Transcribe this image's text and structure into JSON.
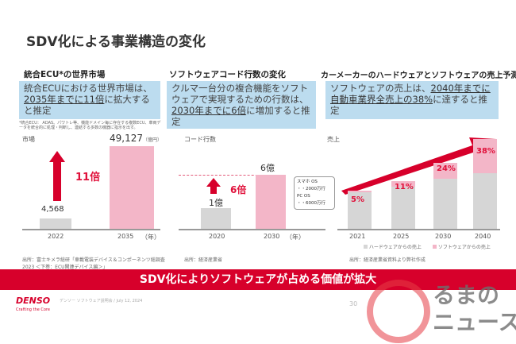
{
  "title": "SDV化による事業構造の変化",
  "panel1": {
    "heading": "統合ECU*の世界市場",
    "text_pre": "統合ECUにおける世界市場は、",
    "text_u": "2035年までに11倍",
    "text_post": "に拡大すると推定",
    "footnote": "*統合ECU： ADAS、パワトレ等、機能ドメイン毎に存在する複数ECU、車両データを統合的に処理・判断し、連結する多数の機器に指示を出す。",
    "ylabel": "市場",
    "unit": "（億円）",
    "values": [
      "4,568",
      "49,127"
    ],
    "years": [
      "2022",
      "2035"
    ],
    "year_unit": "（年）",
    "multiplier": "11倍",
    "source": "出所：富士キメラ総研「車載電装デバイス＆コンポーネンツ総調査 2023 ＜下巻：ECU関連デバイス編＞」"
  },
  "panel2": {
    "heading": "ソフトウェアコード行数の変化",
    "text_pre": "クルマ一台分の複合機能をソフトウェアで実現するための行数は、",
    "text_u": "2030年までに6倍",
    "text_post": "に増加すると推定",
    "ylabel": "コード行数",
    "values": [
      "1億",
      "6億"
    ],
    "years": [
      "2020",
      "2030"
    ],
    "year_unit": "（年）",
    "multiplier": "6倍",
    "callout": [
      "スマホ OS",
      "・・2000万行",
      "PC OS",
      "・・6000万行"
    ],
    "source": "出所：経済産業省"
  },
  "panel3": {
    "heading": "カーメーカーのハードウェアとソフトウェアの売上予測",
    "text_pre": "ソフトウェアの売上は、",
    "text_u": "2040年までに自動車業界全売上の38%",
    "text_post": "に達すると推定",
    "ylabel": "売上",
    "years": [
      "2021",
      "2025",
      "2030",
      "2040"
    ],
    "year_unit": "（年）",
    "shares": [
      "5%",
      "11%",
      "24%",
      "38%"
    ],
    "legend": [
      "ハードウェアからの売上",
      "ソフトウェアからの売上"
    ],
    "source": "出所：経済産業省資料より弊社作成"
  },
  "banner": "SDV化によりソフトウェアが占める価値が拡大",
  "footer": {
    "logo": "DENSO",
    "tagline": "Crafting the Core",
    "event": "デンソー ソフトウェア説明会 / July 12, 2024",
    "page": "30"
  },
  "watermark": "くるまのニュース",
  "colors": {
    "accent": "#d7002b",
    "pink": "#f3b6c8",
    "gray": "#d6d6d6",
    "box": "#bcdcef"
  }
}
